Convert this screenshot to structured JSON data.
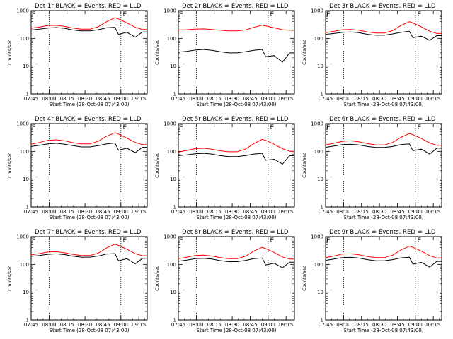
{
  "chart_data": {
    "type": "line",
    "layout": "3x3 grid of small multiples",
    "scale_y": "log",
    "ylim": [
      1,
      1000
    ],
    "y_ticks": [
      "1",
      "10",
      "100",
      "1000"
    ],
    "x_ticks": [
      "07:45",
      "08:00",
      "08:15",
      "08:30",
      "08:45",
      "09:00",
      "09:15"
    ],
    "x_tick_minutes": [
      45,
      60,
      75,
      90,
      105,
      120,
      135
    ],
    "xlim_minutes": [
      45,
      142
    ],
    "x_unit": "minutes after 07:00 UT",
    "xlabel": "Start Time (28-Oct-08 07:43:00)",
    "ylabel": "Counts/sec",
    "dotted_vertical_lines_at": [
      60,
      120
    ],
    "event_marker": {
      "label": "E",
      "at": [
        45,
        121
      ]
    },
    "series_styles": {
      "events": "#000000",
      "lld": "#ff0000"
    },
    "panels": [
      {
        "title": "Det 1r BLACK = Events, RED = LLD",
        "x": [
          45,
          52,
          59,
          66,
          73,
          80,
          87,
          94,
          101,
          108,
          115,
          118,
          125,
          132,
          138,
          142
        ],
        "series": [
          {
            "key": "events",
            "values": [
              200,
              215,
              235,
              245,
              230,
              200,
              185,
              185,
              205,
              240,
              250,
              140,
              165,
              110,
              170,
              170
            ]
          },
          {
            "key": "lld",
            "values": [
              230,
              255,
              290,
              295,
              270,
              235,
              215,
              215,
              260,
              400,
              550,
              500,
              360,
              250,
              210,
              210
            ]
          }
        ]
      },
      {
        "title": "Det 2r BLACK = Events, RED = LLD",
        "x": [
          45,
          52,
          59,
          66,
          73,
          80,
          87,
          94,
          101,
          108,
          115,
          118,
          125,
          132,
          138,
          142
        ],
        "series": [
          {
            "key": "events",
            "values": [
              32,
              34,
              38,
              40,
              37,
              33,
              30,
              30,
              33,
              37,
              40,
              22,
              24,
              14,
              30,
              30
            ]
          },
          {
            "key": "lld",
            "values": [
              200,
              205,
              215,
              220,
              210,
              195,
              185,
              185,
              200,
              250,
              300,
              280,
              240,
              205,
              195,
              195
            ]
          }
        ]
      },
      {
        "title": "Det 3r BLACK = Events, RED = LLD",
        "x": [
          45,
          52,
          59,
          66,
          73,
          80,
          87,
          94,
          101,
          108,
          115,
          118,
          125,
          132,
          138,
          142
        ],
        "series": [
          {
            "key": "events",
            "values": [
              140,
              150,
              165,
              170,
              160,
              140,
              130,
              130,
              145,
              165,
              180,
              105,
              120,
              85,
              125,
              125
            ]
          },
          {
            "key": "lld",
            "values": [
              160,
              180,
              205,
              210,
              195,
              170,
              155,
              155,
              190,
              290,
              400,
              360,
              260,
              180,
              150,
              150
            ]
          }
        ]
      },
      {
        "title": "Det 4r BLACK = Events, RED = LLD",
        "x": [
          45,
          52,
          59,
          66,
          73,
          80,
          87,
          94,
          101,
          108,
          115,
          118,
          125,
          132,
          138,
          142
        ],
        "series": [
          {
            "key": "events",
            "values": [
              150,
              165,
              185,
              195,
              180,
              160,
              145,
              145,
              160,
              185,
              200,
              110,
              130,
              90,
              140,
              140
            ]
          },
          {
            "key": "lld",
            "values": [
              180,
              210,
              250,
              260,
              240,
              205,
              185,
              185,
              230,
              350,
              470,
              420,
              300,
              210,
              175,
              175
            ]
          }
        ]
      },
      {
        "title": "Det 5r BLACK = Events, RED = LLD",
        "x": [
          45,
          52,
          59,
          66,
          73,
          80,
          87,
          94,
          101,
          108,
          115,
          118,
          125,
          132,
          138,
          142
        ],
        "series": [
          {
            "key": "events",
            "values": [
              70,
              75,
              82,
              85,
              80,
              70,
              65,
              65,
              70,
              80,
              85,
              48,
              52,
              35,
              70,
              70
            ]
          },
          {
            "key": "lld",
            "values": [
              95,
              108,
              125,
              130,
              120,
              105,
              97,
              97,
              120,
              190,
              270,
              250,
              180,
              125,
              100,
              100
            ]
          }
        ]
      },
      {
        "title": "Det 6r BLACK = Events, RED = LLD",
        "x": [
          45,
          52,
          59,
          66,
          73,
          80,
          87,
          94,
          101,
          108,
          115,
          118,
          125,
          132,
          138,
          142
        ],
        "series": [
          {
            "key": "events",
            "values": [
              140,
              155,
              175,
              180,
              170,
              150,
              138,
              138,
              150,
              175,
              185,
              105,
              120,
              80,
              130,
              130
            ]
          },
          {
            "key": "lld",
            "values": [
              170,
              195,
              230,
              240,
              220,
              190,
              170,
              170,
              210,
              320,
              440,
              400,
              290,
              200,
              165,
              165
            ]
          }
        ]
      },
      {
        "title": "Det 7r BLACK = Events, RED = LLD",
        "x": [
          45,
          52,
          59,
          66,
          73,
          80,
          87,
          94,
          101,
          108,
          115,
          118,
          125,
          132,
          138,
          142
        ],
        "series": [
          {
            "key": "events",
            "values": [
              195,
              210,
              230,
              240,
              225,
              198,
              182,
              182,
              200,
              235,
              245,
              135,
              160,
              105,
              165,
              165
            ]
          },
          {
            "key": "lld",
            "values": [
              220,
              245,
              280,
              285,
              262,
              228,
              208,
              208,
              252,
              390,
              530,
              485,
              350,
              242,
              205,
              205
            ]
          }
        ]
      },
      {
        "title": "Det 8r BLACK = Events, RED = LLD",
        "x": [
          45,
          52,
          59,
          66,
          73,
          80,
          87,
          94,
          101,
          108,
          115,
          118,
          125,
          132,
          138,
          142
        ],
        "series": [
          {
            "key": "events",
            "values": [
              130,
              142,
              160,
              165,
              155,
              137,
              125,
              125,
              138,
              160,
              170,
              95,
              110,
              75,
              120,
              120
            ]
          },
          {
            "key": "lld",
            "values": [
              160,
              180,
              210,
              215,
              200,
              175,
              160,
              160,
              195,
              300,
              410,
              370,
              270,
              185,
              155,
              155
            ]
          }
        ]
      },
      {
        "title": "Det 9r BLACK = Events, RED = LLD",
        "x": [
          45,
          52,
          59,
          66,
          73,
          80,
          87,
          94,
          101,
          108,
          115,
          118,
          125,
          132,
          138,
          142
        ],
        "series": [
          {
            "key": "events",
            "values": [
              140,
              155,
              175,
              180,
              168,
              148,
              135,
              135,
              148,
              172,
              182,
              102,
              118,
              80,
              128,
              128
            ]
          },
          {
            "key": "lld",
            "values": [
              175,
              200,
              235,
              240,
              222,
              192,
              175,
              175,
              215,
              330,
              450,
              410,
              300,
              205,
              170,
              170
            ]
          }
        ]
      }
    ]
  }
}
